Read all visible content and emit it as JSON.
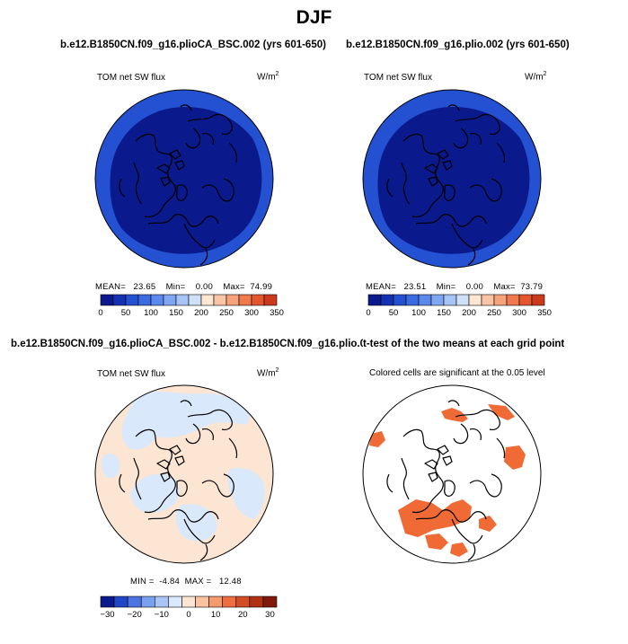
{
  "figure": {
    "title": "DJF",
    "colors": {
      "blue_palette": [
        "#0a1a8c",
        "#1431b4",
        "#2450d2",
        "#3c6ae1",
        "#5a88ec",
        "#7ea6f1",
        "#a6c4f6",
        "#cfe0f9"
      ],
      "red_palette": [
        "#fde6d2",
        "#f9c5a5",
        "#f6a27a",
        "#f0794d",
        "#e55630",
        "#cb3a1c",
        "#a82810",
        "#7d1a08"
      ],
      "diff_palette": [
        "#0a1a8c",
        "#2147c6",
        "#4b74e2",
        "#7aa0ef",
        "#a9c4f5",
        "#d9e8fb",
        "#fce5d3",
        "#f9c3a1",
        "#f49a6d",
        "#ec6e41",
        "#d44c23",
        "#b0300f",
        "#80190a"
      ],
      "sig": "#ef6a35"
    }
  },
  "panels": [
    {
      "title": "b.e12.B1850CN.f09_g16.plioCA_BSC.002 (yrs 601-650)",
      "variable": "TOM net SW flux",
      "units": "W/m",
      "units_sup": "2",
      "stats": {
        "mean_label": "MEAN=",
        "mean": "23.65",
        "min_label": "Min=",
        "min": "0.00",
        "max_label": "Max=",
        "max": "74.99"
      },
      "colorbar": {
        "labels": [
          "0",
          "50",
          "100",
          "150",
          "200",
          "250",
          "300",
          "350"
        ]
      }
    },
    {
      "title": "b.e12.B1850CN.f09_g16.plio.002 (yrs 601-650)",
      "variable": "TOM net SW flux",
      "units": "W/m",
      "units_sup": "2",
      "stats": {
        "mean_label": "MEAN=",
        "mean": "23.51",
        "min_label": "Min=",
        "min": "0.00",
        "max_label": "Max=",
        "max": "73.79"
      },
      "colorbar": {
        "labels": [
          "0",
          "50",
          "100",
          "150",
          "200",
          "250",
          "300",
          "350"
        ]
      }
    },
    {
      "title": "b.e12.B1850CN.f09_g16.plioCA_BSC.002 - b.e12.B1850CN.f09_g16.plio.002",
      "variable": "TOM net SW flux",
      "units": "W/m",
      "units_sup": "2",
      "stats": {
        "min_label": "MIN =",
        "min": "-4.84",
        "max_label": "MAX =",
        "max": "12.48"
      },
      "colorbar": {
        "labels": [
          "-30",
          "-20",
          "-10",
          "0",
          "10",
          "20",
          "30"
        ]
      }
    },
    {
      "title": "t-test of the two means at each grid point",
      "note": "Colored cells are significant at the 0.05 level"
    }
  ],
  "chart_data": [
    {
      "type": "heatmap",
      "projection": "north-polar-stereographic",
      "title": "b.e12.B1850CN.f09_g16.plioCA_BSC.002 (yrs 601-650)",
      "variable": "TOM net SW flux",
      "units": "W/m2",
      "stats": {
        "mean": 23.65,
        "min": 0.0,
        "max": 74.99
      },
      "colorbar_levels": [
        0,
        25,
        50,
        75,
        100,
        125,
        150,
        175,
        200,
        225,
        250,
        275,
        300,
        325,
        350
      ]
    },
    {
      "type": "heatmap",
      "projection": "north-polar-stereographic",
      "title": "b.e12.B1850CN.f09_g16.plio.002 (yrs 601-650)",
      "variable": "TOM net SW flux",
      "units": "W/m2",
      "stats": {
        "mean": 23.51,
        "min": 0.0,
        "max": 73.79
      },
      "colorbar_levels": [
        0,
        25,
        50,
        75,
        100,
        125,
        150,
        175,
        200,
        225,
        250,
        275,
        300,
        325,
        350
      ]
    },
    {
      "type": "heatmap",
      "projection": "north-polar-stereographic",
      "title": "b.e12.B1850CN.f09_g16.plioCA_BSC.002 - b.e12.B1850CN.f09_g16.plio.002",
      "variable": "TOM net SW flux difference",
      "units": "W/m2",
      "stats": {
        "min": -4.84,
        "max": 12.48
      },
      "colorbar_levels": [
        -30,
        -25,
        -20,
        -15,
        -10,
        -5,
        0,
        5,
        10,
        15,
        20,
        25,
        30
      ]
    },
    {
      "type": "heatmap",
      "projection": "north-polar-stereographic",
      "title": "t-test of the two means at each grid point",
      "note": "Colored cells are significant at the 0.05 level"
    }
  ]
}
